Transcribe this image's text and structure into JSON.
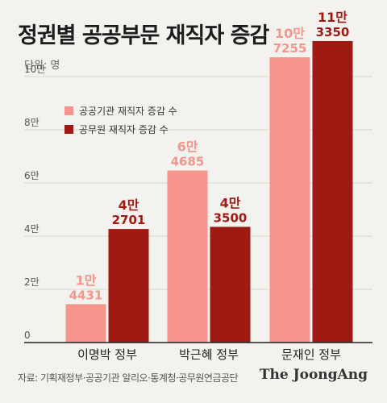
{
  "title": "정권별 공공부문 재직자 증감",
  "unit_label": "단위: 명",
  "source": "자료: 기획재정부·공공기관 알리오·통계청·공무원연금공단",
  "brand": "The JoongAng",
  "colors": {
    "background": "#f3f2ee",
    "public_institution": "#f5958c",
    "civil_servant": "#9e1a12",
    "gridline": "#d8d6d0"
  },
  "chart_data": {
    "type": "bar",
    "categories": [
      "이명박 정부",
      "박근혜 정부",
      "문재인 정부"
    ],
    "series": [
      {
        "name": "공공기관 재직자 증감 수",
        "values": [
          14431,
          64685,
          107255
        ],
        "label_top": [
          "1만",
          "6만",
          "10만"
        ],
        "label_bottom": [
          "4431",
          "4685",
          "7255"
        ]
      },
      {
        "name": "공무원 재직자 증감 수",
        "values": [
          42701,
          43500,
          113350
        ],
        "label_top": [
          "4만",
          "4만",
          "11만"
        ],
        "label_bottom": [
          "2701",
          "3500",
          "3350"
        ]
      }
    ],
    "y_ticks": [
      0,
      20000,
      40000,
      60000,
      80000,
      100000
    ],
    "y_tick_labels": [
      "0",
      "2만",
      "4만",
      "6만",
      "8만",
      "10만"
    ],
    "ylim": [
      0,
      120000
    ],
    "grid": true,
    "legend_position": "top-left"
  }
}
